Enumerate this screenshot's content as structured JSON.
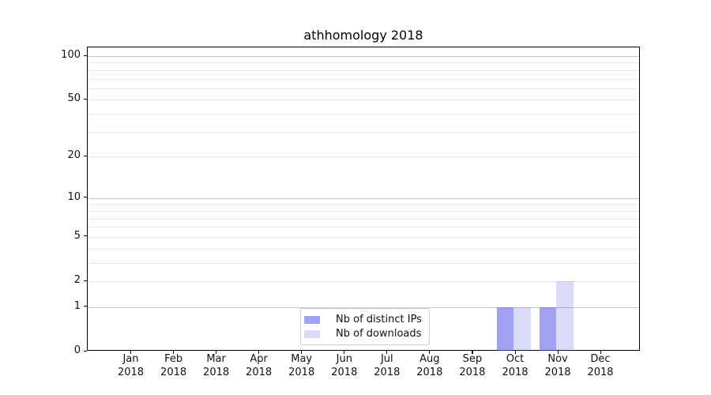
{
  "chart_data": {
    "type": "bar",
    "title": "athhomology 2018",
    "year_label": "2018",
    "months": [
      "Jan",
      "Feb",
      "Mar",
      "Apr",
      "May",
      "Jun",
      "Jul",
      "Aug",
      "Sep",
      "Oct",
      "Nov",
      "Dec"
    ],
    "series": [
      {
        "name": "Nb of distinct IPs",
        "color": "rgba(85,85,235,0.55)",
        "values": [
          0,
          0,
          0,
          0,
          0,
          0,
          0,
          0,
          0,
          1,
          1,
          0
        ]
      },
      {
        "name": "Nb of downloads",
        "color": "rgba(85,85,235,0.22)",
        "values": [
          0,
          0,
          0,
          0,
          0,
          0,
          0,
          0,
          0,
          1,
          2,
          0
        ]
      }
    ],
    "y_ticks": [
      0,
      1,
      2,
      5,
      10,
      20,
      50,
      100
    ],
    "y_scale": "log1p",
    "ylim": [
      0,
      113
    ],
    "xlabel": "",
    "ylabel": "",
    "grid": {
      "major_lines": [
        1,
        10,
        100
      ],
      "minor_lines": [
        2,
        3,
        4,
        5,
        6,
        7,
        8,
        9,
        20,
        30,
        40,
        50,
        60,
        70,
        80,
        90
      ],
      "major_color": "#c6c6c6",
      "minor_color": "#e9e9e9"
    },
    "legend": {
      "position": "lower center",
      "entries": [
        "Nb of distinct IPs",
        "Nb of downloads"
      ]
    },
    "colors": {
      "axis": "#000000",
      "background": "#ffffff",
      "tick_text": "#111111"
    }
  }
}
